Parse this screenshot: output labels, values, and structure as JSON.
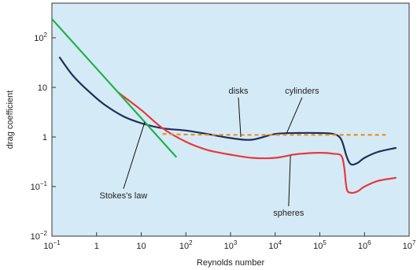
{
  "chart_data": {
    "type": "line",
    "title": "",
    "xlabel": "Reynolds number",
    "ylabel": "drag coefficient",
    "x_scale": "log",
    "y_scale": "log",
    "xlim": [
      0.1,
      10000000
    ],
    "ylim": [
      0.01,
      500
    ],
    "grid": false,
    "x_ticks": [
      {
        "value": 0.1,
        "base": "10",
        "exp": "−1"
      },
      {
        "value": 1,
        "base": "1",
        "exp": ""
      },
      {
        "value": 10,
        "base": "10",
        "exp": ""
      },
      {
        "value": 100,
        "base": "10",
        "exp": "2"
      },
      {
        "value": 1000,
        "base": "10",
        "exp": "3"
      },
      {
        "value": 10000,
        "base": "10",
        "exp": "4"
      },
      {
        "value": 100000,
        "base": "10",
        "exp": "5"
      },
      {
        "value": 1000000,
        "base": "10",
        "exp": "6"
      },
      {
        "value": 10000000,
        "base": "10",
        "exp": "7"
      }
    ],
    "y_ticks": [
      {
        "value": 0.01,
        "base": "10",
        "exp": "−2"
      },
      {
        "value": 0.1,
        "base": "10",
        "exp": "−1"
      },
      {
        "value": 1,
        "base": "1",
        "exp": ""
      },
      {
        "value": 10,
        "base": "10",
        "exp": ""
      },
      {
        "value": 100,
        "base": "10",
        "exp": "2"
      }
    ],
    "series": [
      {
        "color": "#1f2d5c",
        "style": "solid",
        "points": [
          [
            0.15,
            40
          ],
          [
            0.3,
            17
          ],
          [
            0.7,
            8
          ],
          [
            1.5,
            4.5
          ],
          [
            4,
            2.6
          ],
          [
            10,
            1.9
          ],
          [
            30,
            1.5
          ],
          [
            100,
            1.35
          ],
          [
            300,
            1.15
          ],
          [
            1000,
            0.95
          ],
          [
            3000,
            0.88
          ],
          [
            10000,
            1.15
          ],
          [
            30000,
            1.2
          ],
          [
            100000,
            1.2
          ],
          [
            200000,
            1.15
          ],
          [
            300000,
            0.9
          ],
          [
            400000,
            0.4
          ],
          [
            500000,
            0.28
          ],
          [
            700000,
            0.3
          ],
          [
            1000000,
            0.38
          ],
          [
            2000000,
            0.5
          ],
          [
            5000000,
            0.6
          ]
        ]
      },
      {
        "color": "#e8383d",
        "style": "solid",
        "points": [
          [
            3,
            8
          ],
          [
            10,
            3.5
          ],
          [
            30,
            1.5
          ],
          [
            100,
            0.8
          ],
          [
            300,
            0.55
          ],
          [
            1000,
            0.44
          ],
          [
            3000,
            0.38
          ],
          [
            10000,
            0.38
          ],
          [
            30000,
            0.45
          ],
          [
            100000,
            0.48
          ],
          [
            200000,
            0.46
          ],
          [
            300000,
            0.42
          ],
          [
            350000,
            0.25
          ],
          [
            400000,
            0.09
          ],
          [
            500000,
            0.075
          ],
          [
            700000,
            0.08
          ],
          [
            1000000,
            0.1
          ],
          [
            2000000,
            0.13
          ],
          [
            5000000,
            0.15
          ]
        ]
      },
      {
        "color": "#22b14c",
        "style": "solid",
        "points": [
          [
            0.1,
            240
          ],
          [
            60,
            0.4
          ]
        ]
      },
      {
        "color": "#f28c1b",
        "style": "dashed",
        "points": [
          [
            30,
            1.15
          ],
          [
            100,
            1.12
          ],
          [
            1000,
            1.1
          ],
          [
            10000,
            1.1
          ],
          [
            100000,
            1.1
          ],
          [
            1000000,
            1.1
          ],
          [
            3000000,
            1.1
          ]
        ]
      }
    ],
    "annotations": [
      {
        "text": "disks",
        "point": [
          1700,
          1.0
        ],
        "label_at": [
          1500,
          7.5
        ]
      },
      {
        "text": "cylinders",
        "point": [
          18000,
          1.18
        ],
        "label_at": [
          40000,
          7.5
        ]
      },
      {
        "text": "Stokes's law",
        "point": [
          12,
          2.0
        ],
        "label_at": [
          4,
          0.058
        ]
      },
      {
        "text": "spheres",
        "point": [
          22000,
          0.42
        ],
        "label_at": [
          20000,
          0.026
        ]
      }
    ]
  }
}
